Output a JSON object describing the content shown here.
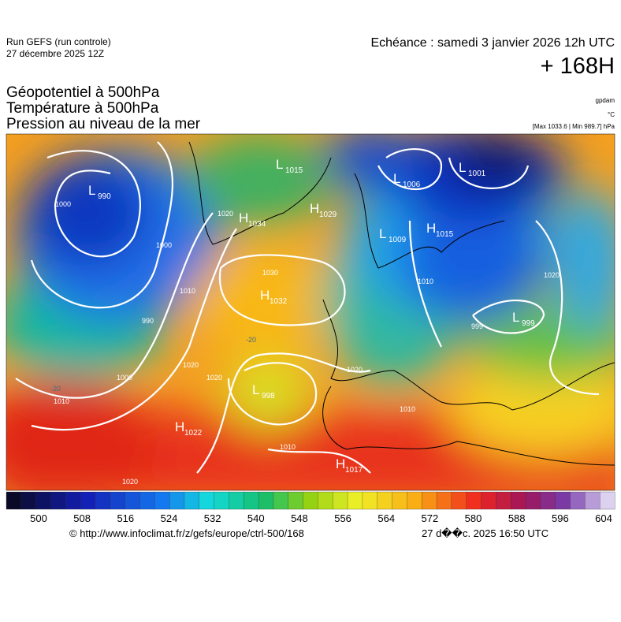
{
  "header": {
    "run": "Run GEFS (run controle)",
    "run_date": "27 décembre 2025 12Z",
    "valid": "Echéance : samedi 3 janvier 2026 12h UTC",
    "lead": "+ 168H"
  },
  "titles": [
    "Géopotentiel à 500hPa",
    "Température à 500hPa",
    "Pression au niveau de la mer"
  ],
  "units": [
    "gpdam",
    "°C",
    "[Max 1033.6 | Min 989.7] hPa"
  ],
  "map": {
    "systems": [
      {
        "letter": "L",
        "value": "990"
      },
      {
        "letter": "H",
        "value": "1034"
      },
      {
        "letter": "L",
        "value": "1015"
      },
      {
        "letter": "H",
        "value": "1029"
      },
      {
        "letter": "L",
        "value": "1006"
      },
      {
        "letter": "L",
        "value": "1001"
      },
      {
        "letter": "L",
        "value": "1009"
      },
      {
        "letter": "H",
        "value": "1015"
      },
      {
        "letter": "H",
        "value": "1032"
      },
      {
        "letter": "L",
        "value": "999"
      },
      {
        "letter": "L",
        "value": "998"
      },
      {
        "letter": "H",
        "value": "1022"
      },
      {
        "letter": "H",
        "value": "1017"
      }
    ],
    "contour_labels": [
      "1000",
      "1000",
      "990",
      "1010",
      "1000",
      "1010",
      "1020",
      "1020",
      "1030",
      "1020",
      "1010",
      "1020",
      "1010",
      "1010",
      "1020",
      "1020",
      "999",
      "-20",
      "-20"
    ]
  },
  "colorbar": {
    "labels": [
      500,
      508,
      516,
      524,
      532,
      540,
      548,
      556,
      564,
      572,
      580,
      588,
      596,
      604
    ]
  },
  "footer": {
    "url": "© http://www.infoclimat.fr/z/gefs/europe/ctrl-500/168",
    "timestamp": "27 d��c. 2025 16:50 UTC"
  }
}
